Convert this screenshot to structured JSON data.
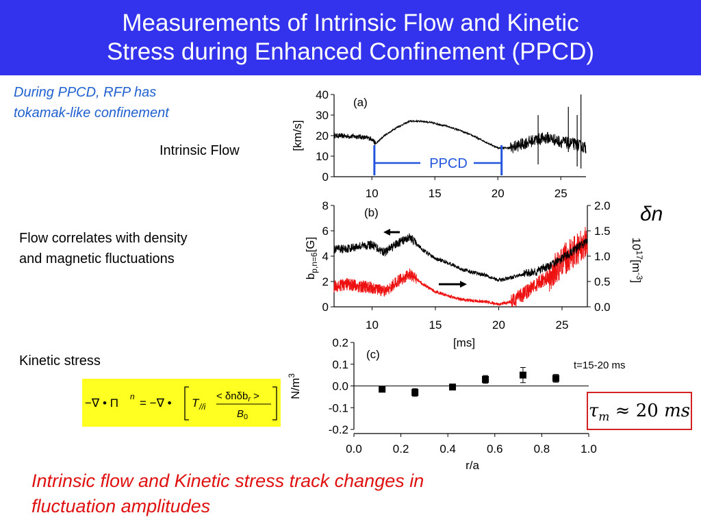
{
  "slide": {
    "title_line1": "Measurements of Intrinsic Flow and Kinetic",
    "title_line2": "Stress during Enhanced Confinement (PPCD)",
    "note_line1": "During PPCD, RFP has",
    "note_line2": "tokamak-like confinement",
    "label_flow": "Intrinsic Flow",
    "label_corr_line1": "Flow correlates with density",
    "label_corr_line2": "and magnetic fluctuations",
    "label_stress": "Kinetic stress",
    "bottom_line1": "Intrinsic flow and Kinetic stress track changes in",
    "bottom_line2": "fluctuation amplitudes",
    "tau_symbol": "τ",
    "tau_sub": "m",
    "tau_rest": " ≈ 20 ",
    "tau_unit": "ms"
  },
  "colors": {
    "header_bg": "#3333ee",
    "note_blue": "#2060d0",
    "bottom_red": "#e01010",
    "series_red": "#ee1111",
    "ppcd_blue": "#2255dd",
    "formula_bg": "#ffff22"
  },
  "chart_data": [
    {
      "type": "line",
      "panel_label": "(a)",
      "ylabel": "[km/s]",
      "xlim": [
        7,
        27
      ],
      "ylim": [
        0,
        40
      ],
      "x_ticks": [
        "10",
        "15",
        "20",
        "25"
      ],
      "y_ticks": [
        "0",
        "10",
        "20",
        "30",
        "40"
      ],
      "annotation": "PPCD",
      "ppcd_range": [
        10.2,
        20.3
      ],
      "series": [
        {
          "x": [
            7,
            9,
            10,
            10.3,
            11,
            12,
            13,
            14,
            15,
            16,
            17,
            18,
            19,
            20,
            21,
            22,
            23,
            24,
            25,
            26,
            27
          ],
          "y": [
            20,
            19.5,
            18.5,
            16,
            20,
            24,
            27,
            27,
            26,
            24.5,
            22.5,
            20,
            17,
            14,
            14,
            16,
            18,
            19,
            17,
            16,
            14
          ]
        }
      ]
    },
    {
      "type": "line",
      "panel_label": "(b)",
      "ylabel": "b",
      "ylabel_sub": "p,n=6",
      "ylabel_rest": "[G]",
      "y2label_main": "10",
      "y2label_sup": "17",
      "y2label_rest": "[m",
      "y2label_sup2": "-3",
      "y2label_close": "]",
      "y2_symbol": "δn",
      "xlabel": "[ms]",
      "xlim": [
        7,
        27
      ],
      "ylim": [
        0,
        8
      ],
      "y2lim": [
        0,
        2
      ],
      "x_ticks": [
        "10",
        "15",
        "20",
        "25"
      ],
      "y_ticks": [
        "0",
        "2",
        "4",
        "6",
        "8"
      ],
      "y2_ticks": [
        "0.0",
        "0.5",
        "1.0",
        "1.5",
        "2.0"
      ],
      "series": [
        {
          "axis": "left",
          "color": "black",
          "x": [
            7,
            8,
            9,
            10,
            11,
            12,
            13,
            14,
            15,
            16,
            17,
            18,
            19,
            20,
            21,
            22,
            23,
            24,
            25,
            26,
            27
          ],
          "y": [
            4.5,
            4.6,
            4.8,
            4.9,
            4.3,
            5.0,
            5.5,
            4.5,
            3.8,
            3.5,
            3.0,
            2.7,
            2.5,
            2.1,
            2.3,
            2.6,
            2.8,
            3.2,
            3.8,
            4.5,
            5.2
          ]
        },
        {
          "axis": "right",
          "color": "red",
          "x": [
            7,
            8,
            9,
            10,
            11,
            12,
            13,
            14,
            15,
            16,
            17,
            18,
            19,
            20,
            21,
            22,
            23,
            24,
            25,
            26,
            27
          ],
          "y": [
            0.4,
            0.45,
            0.4,
            0.38,
            0.3,
            0.5,
            0.65,
            0.45,
            0.3,
            0.22,
            0.15,
            0.12,
            0.1,
            0.05,
            0.1,
            0.25,
            0.45,
            0.6,
            0.9,
            1.1,
            1.3
          ]
        }
      ]
    },
    {
      "type": "scatter",
      "panel_label": "(c)",
      "annotation": "t=15-20 ms",
      "ylabel": "N/m",
      "ylabel_sup": "3",
      "xlabel": "r/a",
      "xlim": [
        0,
        1
      ],
      "ylim": [
        -0.2,
        0.2
      ],
      "x_ticks": [
        "0.0",
        "0.2",
        "0.4",
        "0.6",
        "0.8",
        "1.0"
      ],
      "y_ticks": [
        "-0.2",
        "-0.1",
        "0.0",
        "0.1",
        "0.2"
      ],
      "x": [
        0.12,
        0.26,
        0.42,
        0.56,
        0.72,
        0.86
      ],
      "y": [
        -0.015,
        -0.03,
        -0.005,
        0.03,
        0.05,
        0.035
      ],
      "yerr": [
        0.01,
        0.018,
        0.008,
        0.018,
        0.035,
        0.018
      ]
    }
  ]
}
